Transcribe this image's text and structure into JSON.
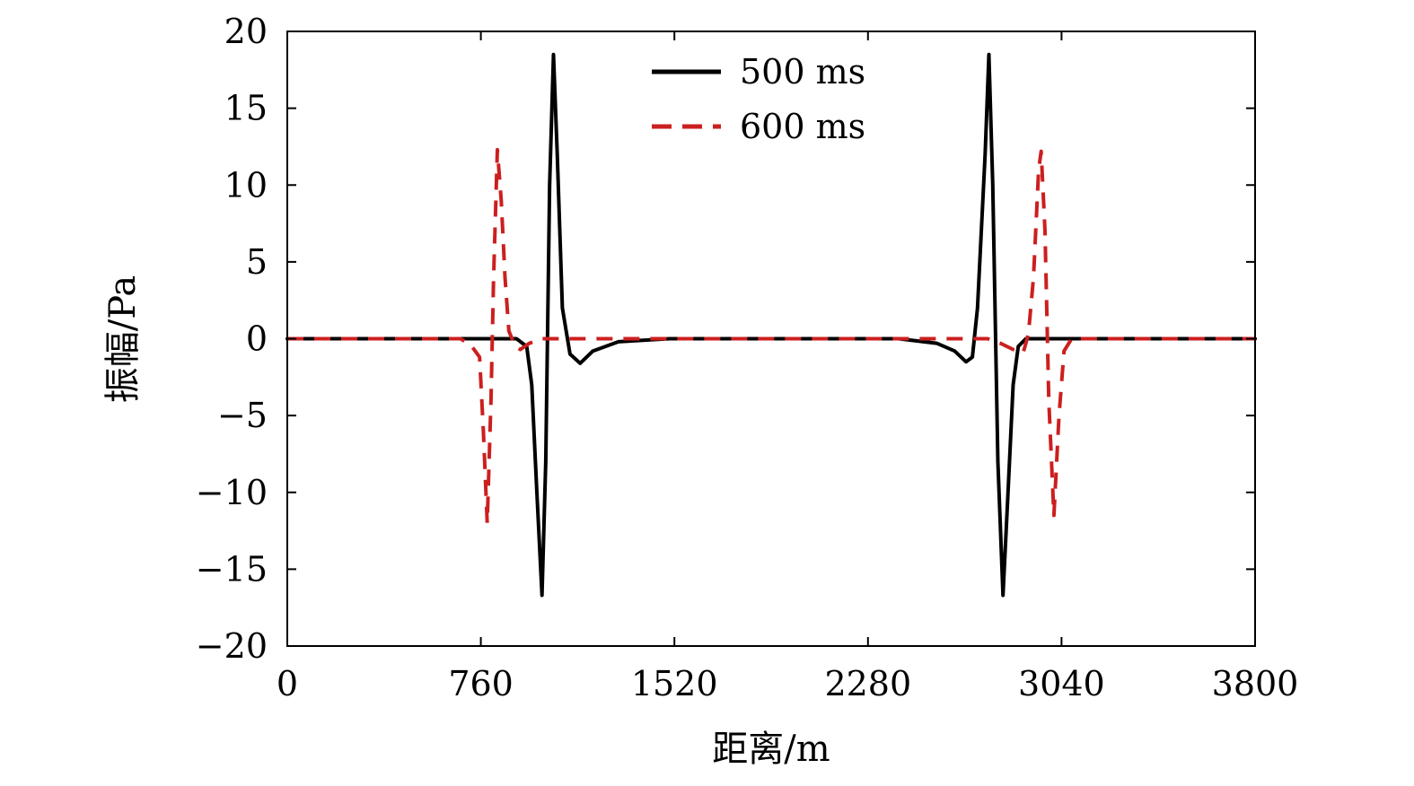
{
  "chart_data": {
    "type": "line",
    "title": "",
    "xlabel": "距离/m",
    "ylabel": "振幅/Pa",
    "xlim": [
      0,
      3800
    ],
    "ylim": [
      -20,
      20
    ],
    "xticks": [
      0,
      760,
      1520,
      2280,
      3040,
      3800
    ],
    "xtick_labels": [
      "0",
      "760",
      "1520",
      "2280",
      "3040",
      "3800"
    ],
    "yticks": [
      20,
      15,
      10,
      5,
      0,
      -5,
      -10,
      -15,
      -20
    ],
    "ytick_labels": [
      "20",
      "15",
      "10",
      "5",
      "0",
      "−5",
      "−10",
      "−15",
      "−20"
    ],
    "grid": false,
    "legend_position": "top-center",
    "series": [
      {
        "name": "500 ms",
        "color": "#000000",
        "style": "solid",
        "points": [
          [
            0,
            0
          ],
          [
            900,
            0
          ],
          [
            940,
            -0.5
          ],
          [
            960,
            -3
          ],
          [
            980,
            -10
          ],
          [
            1000,
            -16.7
          ],
          [
            1015,
            -8
          ],
          [
            1030,
            10
          ],
          [
            1045,
            18.5
          ],
          [
            1060,
            12
          ],
          [
            1080,
            2
          ],
          [
            1110,
            -1
          ],
          [
            1150,
            -1.6
          ],
          [
            1200,
            -0.8
          ],
          [
            1300,
            -0.2
          ],
          [
            1500,
            0
          ],
          [
            2200,
            0
          ],
          [
            2400,
            0
          ],
          [
            2550,
            -0.3
          ],
          [
            2620,
            -0.8
          ],
          [
            2665,
            -1.5
          ],
          [
            2690,
            -1.2
          ],
          [
            2710,
            2
          ],
          [
            2740,
            12
          ],
          [
            2755,
            18.5
          ],
          [
            2770,
            10
          ],
          [
            2790,
            -8
          ],
          [
            2810,
            -16.7
          ],
          [
            2830,
            -10
          ],
          [
            2850,
            -3
          ],
          [
            2870,
            -0.5
          ],
          [
            2900,
            0
          ],
          [
            3800,
            0
          ]
        ]
      },
      {
        "name": "600 ms",
        "color": "#cc1f1f",
        "style": "dashed",
        "points": [
          [
            0,
            0
          ],
          [
            680,
            0
          ],
          [
            720,
            -0.4
          ],
          [
            755,
            -1.2
          ],
          [
            770,
            -6
          ],
          [
            785,
            -12
          ],
          [
            800,
            -4
          ],
          [
            810,
            4
          ],
          [
            825,
            12.3
          ],
          [
            840,
            9
          ],
          [
            855,
            4
          ],
          [
            870,
            0.5
          ],
          [
            895,
            -0.5
          ],
          [
            915,
            -0.7
          ],
          [
            950,
            -0.3
          ],
          [
            1000,
            0
          ],
          [
            2750,
            0
          ],
          [
            2800,
            -0.3
          ],
          [
            2850,
            -0.7
          ],
          [
            2890,
            -0.9
          ],
          [
            2910,
            0.3
          ],
          [
            2930,
            4
          ],
          [
            2950,
            11
          ],
          [
            2960,
            12.2
          ],
          [
            2975,
            7
          ],
          [
            2990,
            -4
          ],
          [
            3010,
            -11.5
          ],
          [
            3030,
            -5
          ],
          [
            3050,
            -0.8
          ],
          [
            3080,
            0
          ],
          [
            3800,
            0
          ]
        ]
      }
    ]
  }
}
